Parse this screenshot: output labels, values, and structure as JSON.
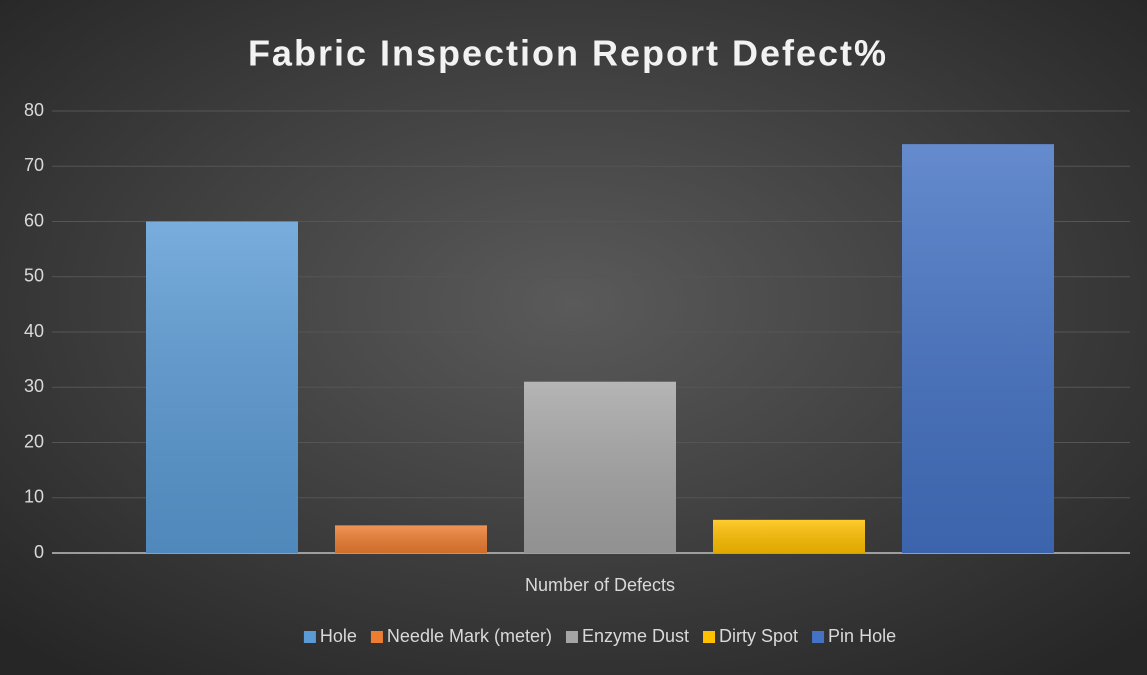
{
  "chart_data": {
    "type": "bar",
    "title": "Fabric Inspection Report Defect%",
    "categories": [
      "Number of Defects"
    ],
    "series": [
      {
        "name": "Hole",
        "color": "#5b9bd5",
        "values": [
          60
        ]
      },
      {
        "name": "Needle Mark (meter)",
        "color": "#ed7d31",
        "values": [
          5
        ]
      },
      {
        "name": "Enzyme Dust",
        "color": "#a5a5a5",
        "values": [
          31
        ]
      },
      {
        "name": "Dirty Spot",
        "color": "#ffc000",
        "values": [
          6
        ]
      },
      {
        "name": "Pin Hole",
        "color": "#4472c4",
        "values": [
          74
        ]
      }
    ],
    "ylim": [
      0,
      80
    ],
    "yticks": [
      0,
      10,
      20,
      30,
      40,
      50,
      60,
      70,
      80
    ],
    "grid": true,
    "legend": "bottom"
  }
}
